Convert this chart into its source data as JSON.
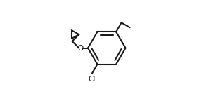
{
  "bg_color": "#ffffff",
  "line_color": "#1a1a1a",
  "line_width": 1.5,
  "figsize": [
    2.83,
    1.37
  ],
  "dpi": 100,
  "Cl_label": "Cl",
  "O_label": "O"
}
